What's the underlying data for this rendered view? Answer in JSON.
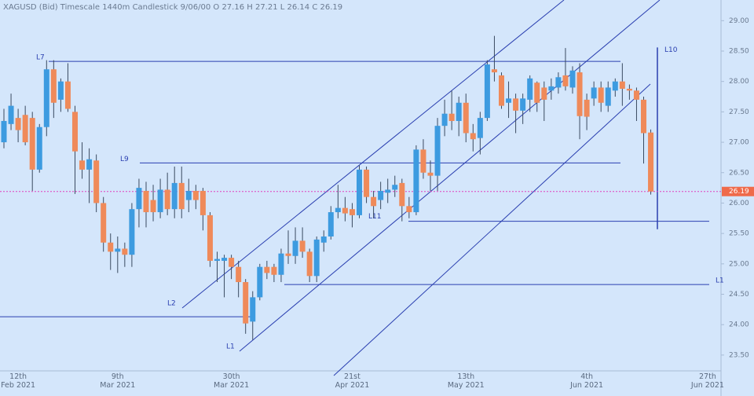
{
  "chart_data": {
    "type": "candlestick",
    "title": "XAGUSD (Bid)   Timescale 1440m   Candlestick   9/06/00   O 27.16   H 27.21   L 26.14   C 26.19",
    "categories": [
      null,
      null,
      "12th\nFeb 2021",
      null,
      null,
      null,
      null,
      null,
      null,
      null,
      null,
      null,
      null,
      null,
      null,
      null,
      "9th\nMar 2021",
      null,
      null,
      null,
      null,
      null,
      null,
      null,
      null,
      null,
      null,
      null,
      null,
      null,
      null,
      null,
      "30th\nMar 2021",
      null,
      null,
      null,
      null,
      null,
      null,
      null,
      null,
      null,
      null,
      null,
      null,
      null,
      null,
      null,
      null,
      "21st\nApr 2021",
      null,
      null,
      null,
      null,
      null,
      null,
      null,
      null,
      null,
      null,
      null,
      null,
      null,
      null,
      null,
      "13th\nMay 2021",
      null,
      null,
      null,
      null,
      null,
      null,
      null,
      null,
      null,
      null,
      null,
      null,
      null,
      null,
      null,
      null,
      "4th\nJun 2021",
      null,
      null,
      null,
      null,
      null,
      null,
      null,
      null,
      null,
      null,
      null,
      null,
      null,
      null,
      null,
      null,
      "27th\nJun 2021"
    ],
    "open": [
      27.0,
      27.3,
      27.4,
      27.45,
      27.4,
      26.55,
      27.25,
      28.2,
      27.7,
      28.0,
      27.5,
      26.7,
      26.55,
      26.7,
      26.0,
      25.35,
      25.2,
      25.25,
      25.15,
      25.9,
      26.2,
      26.05,
      25.85,
      26.22,
      25.9,
      26.33,
      26.05,
      26.2,
      26.2,
      25.8,
      25.05,
      25.05,
      25.1,
      24.95,
      24.7,
      24.05,
      24.45,
      24.95,
      24.95,
      24.82,
      25.17,
      25.13,
      25.38,
      25.2,
      24.8,
      25.35,
      25.45,
      25.85,
      25.92,
      25.9,
      25.8,
      26.55,
      26.1,
      26.05,
      26.17,
      26.22,
      26.33,
      25.95,
      25.85,
      26.88,
      26.5,
      26.45,
      27.27,
      27.47,
      27.35,
      27.65,
      27.15,
      27.07,
      27.4,
      28.2,
      28.1,
      27.65,
      27.72,
      27.52,
      27.7,
      27.98,
      27.9,
      27.85,
      27.9,
      28.1,
      27.9,
      28.15,
      27.7,
      27.72,
      27.9,
      27.6,
      27.85,
      28.0,
      27.88,
      27.85,
      27.7,
      27.16,
      null,
      null,
      null,
      null,
      null,
      null,
      null,
      null
    ],
    "high": [
      27.55,
      27.8,
      27.55,
      27.6,
      27.5,
      27.3,
      28.35,
      28.35,
      28.05,
      28.3,
      27.6,
      27.0,
      26.9,
      26.8,
      26.1,
      25.5,
      25.45,
      25.35,
      26.0,
      26.4,
      26.35,
      26.3,
      26.4,
      26.5,
      26.6,
      26.6,
      26.4,
      26.3,
      26.25,
      25.85,
      25.2,
      25.15,
      25.15,
      25.05,
      24.75,
      24.55,
      25.0,
      25.05,
      25.0,
      25.25,
      25.55,
      25.6,
      25.6,
      25.25,
      25.45,
      25.55,
      25.95,
      26.3,
      26.1,
      26.0,
      26.62,
      26.6,
      26.2,
      26.35,
      26.4,
      26.45,
      26.4,
      26.1,
      26.95,
      27.05,
      26.7,
      27.4,
      27.7,
      27.85,
      27.75,
      27.8,
      27.3,
      27.5,
      28.35,
      28.75,
      28.15,
      28.0,
      27.8,
      27.8,
      28.1,
      28.0,
      28.0,
      28.05,
      28.15,
      28.55,
      28.25,
      28.3,
      27.8,
      28.0,
      28.0,
      28.0,
      28.05,
      28.3,
      27.95,
      27.9,
      27.75,
      27.21,
      null,
      null,
      null,
      null,
      null,
      null,
      null,
      null
    ],
    "low": [
      26.9,
      27.2,
      27.0,
      26.95,
      26.2,
      26.5,
      27.1,
      27.4,
      27.5,
      27.5,
      26.15,
      26.4,
      26.0,
      25.85,
      25.2,
      24.9,
      24.85,
      24.95,
      24.95,
      25.6,
      25.6,
      25.7,
      25.75,
      25.8,
      25.75,
      25.75,
      25.85,
      25.9,
      25.55,
      24.95,
      24.7,
      24.45,
      24.75,
      24.45,
      23.85,
      23.75,
      24.4,
      24.75,
      24.7,
      24.7,
      25.0,
      25.0,
      25.1,
      24.7,
      24.7,
      25.2,
      25.4,
      25.75,
      25.7,
      25.6,
      25.75,
      26.0,
      25.75,
      25.9,
      26.0,
      26.1,
      25.7,
      25.75,
      25.8,
      26.4,
      26.2,
      26.2,
      27.1,
      27.2,
      27.1,
      27.0,
      26.85,
      26.8,
      27.35,
      28.0,
      27.55,
      27.4,
      27.15,
      27.3,
      27.5,
      27.5,
      27.35,
      27.7,
      27.8,
      27.85,
      27.8,
      27.05,
      27.2,
      27.6,
      27.5,
      27.5,
      27.75,
      27.6,
      27.7,
      27.35,
      26.65,
      26.14,
      null,
      null,
      null,
      null,
      null,
      null,
      null,
      null
    ],
    "close": [
      27.35,
      27.6,
      27.2,
      27.0,
      26.55,
      27.25,
      28.2,
      27.65,
      28.0,
      27.55,
      26.85,
      26.55,
      26.72,
      26.0,
      25.35,
      25.2,
      25.25,
      25.15,
      25.9,
      26.25,
      25.85,
      25.85,
      26.22,
      25.9,
      26.33,
      25.9,
      26.2,
      26.05,
      25.8,
      25.05,
      25.08,
      25.1,
      24.95,
      24.7,
      24.02,
      24.45,
      24.95,
      24.85,
      24.82,
      25.17,
      25.13,
      25.38,
      25.2,
      24.8,
      25.4,
      25.45,
      25.85,
      25.92,
      25.83,
      25.8,
      26.55,
      26.1,
      25.95,
      26.2,
      26.22,
      26.3,
      25.95,
      25.85,
      26.88,
      26.5,
      26.45,
      27.27,
      27.47,
      27.35,
      27.65,
      27.15,
      27.05,
      27.4,
      28.28,
      28.15,
      27.6,
      27.72,
      27.52,
      27.72,
      28.05,
      27.65,
      27.7,
      27.92,
      28.07,
      27.92,
      28.18,
      27.43,
      27.42,
      27.9,
      27.65,
      27.9,
      28.0,
      27.88,
      27.85,
      27.7,
      27.15,
      26.19,
      null,
      null,
      null,
      null,
      null,
      null,
      null,
      null
    ],
    "up_color": "#3d9be0",
    "down_color": "#ef8a5a",
    "ylim": [
      23.24,
      29.34
    ],
    "yticks": [
      {
        "value": 23.5,
        "label": "23.50"
      },
      {
        "value": 24,
        "label": "24.00"
      },
      {
        "value": 24.5,
        "label": "24.50"
      },
      {
        "value": 25,
        "label": "25.00"
      },
      {
        "value": 25.5,
        "label": "25.50"
      },
      {
        "value": 26,
        "label": "26.00"
      },
      {
        "value": 26.5,
        "label": "26.50"
      },
      {
        "value": 27,
        "label": "27.00"
      },
      {
        "value": 27.5,
        "label": "27.50"
      },
      {
        "value": 28,
        "label": "28.00"
      },
      {
        "value": 28.5,
        "label": "28.50"
      },
      {
        "value": 29,
        "label": "29.00"
      }
    ],
    "last_price": 26.19,
    "levels": [
      {
        "label": "L7",
        "value": 28.33
      },
      {
        "label": "L9",
        "value": 26.66
      },
      {
        "label": "L11",
        "value": 25.7
      },
      {
        "label": "L1",
        "value": 24.66
      },
      {
        "value": 24.13
      }
    ],
    "vertical": {
      "label": "L10",
      "from": 28.56,
      "to": 25.57
    },
    "channel_labels": [
      "L2",
      "L1"
    ]
  }
}
